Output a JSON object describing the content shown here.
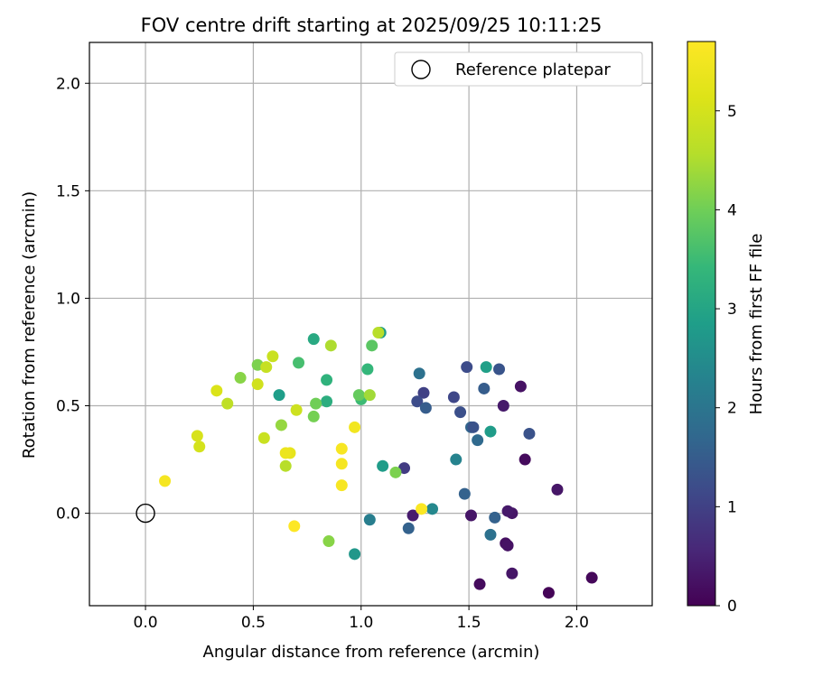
{
  "chart_data": {
    "type": "scatter",
    "title": "FOV centre drift starting at 2025/09/25 10:11:25",
    "xlabel": "Angular distance from reference (arcmin)",
    "ylabel": "Rotation from reference (arcmin)",
    "xlim": [
      -0.26,
      2.35
    ],
    "ylim": [
      -0.43,
      2.19
    ],
    "xticks": [
      0.0,
      0.5,
      1.0,
      1.5,
      2.0
    ],
    "xtick_labels": [
      "0.0",
      "0.5",
      "1.0",
      "1.5",
      "2.0"
    ],
    "yticks": [
      0.0,
      0.5,
      1.0,
      1.5,
      2.0
    ],
    "ytick_labels": [
      "0.0",
      "0.5",
      "1.0",
      "1.5",
      "2.0"
    ],
    "grid": true,
    "legend": {
      "position": "top-right",
      "entries": [
        {
          "label": "Reference platepar",
          "marker": "open-circle"
        }
      ]
    },
    "reference_point": {
      "x": 0.0,
      "y": 0.0
    },
    "colorbar": {
      "label": "Hours from first FF file",
      "min": 0,
      "max": 5.7,
      "ticks": [
        0,
        1,
        2,
        3,
        4,
        5
      ],
      "tick_labels": [
        "0",
        "1",
        "2",
        "3",
        "4",
        "5"
      ],
      "colormap": "viridis"
    },
    "points": [
      {
        "x": 1.87,
        "y": -0.37,
        "t": 0.05
      },
      {
        "x": 2.07,
        "y": -0.3,
        "t": 0.1
      },
      {
        "x": 1.55,
        "y": -0.33,
        "t": 0.15
      },
      {
        "x": 1.7,
        "y": -0.28,
        "t": 0.3
      },
      {
        "x": 1.67,
        "y": -0.14,
        "t": 0.2
      },
      {
        "x": 1.68,
        "y": -0.15,
        "t": 0.25
      },
      {
        "x": 1.7,
        "y": 0.0,
        "t": 0.3
      },
      {
        "x": 1.68,
        "y": 0.01,
        "t": 0.35
      },
      {
        "x": 1.51,
        "y": -0.01,
        "t": 0.3
      },
      {
        "x": 1.24,
        "y": -0.01,
        "t": 0.4
      },
      {
        "x": 1.91,
        "y": 0.11,
        "t": 0.3
      },
      {
        "x": 1.76,
        "y": 0.25,
        "t": 0.15
      },
      {
        "x": 1.74,
        "y": 0.59,
        "t": 0.25
      },
      {
        "x": 1.66,
        "y": 0.5,
        "t": 0.35
      },
      {
        "x": 1.2,
        "y": 0.21,
        "t": 0.9
      },
      {
        "x": 1.62,
        "y": -0.02,
        "t": 1.6
      },
      {
        "x": 1.6,
        "y": -0.1,
        "t": 1.9
      },
      {
        "x": 1.22,
        "y": -0.07,
        "t": 1.6
      },
      {
        "x": 1.48,
        "y": 0.09,
        "t": 1.6
      },
      {
        "x": 1.78,
        "y": 0.37,
        "t": 1.3
      },
      {
        "x": 1.49,
        "y": 0.68,
        "t": 1.2
      },
      {
        "x": 1.64,
        "y": 0.67,
        "t": 1.35
      },
      {
        "x": 1.57,
        "y": 0.58,
        "t": 1.5
      },
      {
        "x": 1.43,
        "y": 0.54,
        "t": 1.1
      },
      {
        "x": 1.29,
        "y": 0.56,
        "t": 1.0
      },
      {
        "x": 1.26,
        "y": 0.52,
        "t": 1.2
      },
      {
        "x": 1.3,
        "y": 0.49,
        "t": 1.5
      },
      {
        "x": 1.46,
        "y": 0.47,
        "t": 1.25
      },
      {
        "x": 1.51,
        "y": 0.4,
        "t": 1.65
      },
      {
        "x": 1.52,
        "y": 0.4,
        "t": 1.3
      },
      {
        "x": 1.54,
        "y": 0.34,
        "t": 1.75
      },
      {
        "x": 1.27,
        "y": 0.65,
        "t": 1.9
      },
      {
        "x": 1.44,
        "y": 0.25,
        "t": 2.3
      },
      {
        "x": 1.04,
        "y": -0.03,
        "t": 2.2
      },
      {
        "x": 1.33,
        "y": 0.02,
        "t": 2.4
      },
      {
        "x": 0.97,
        "y": -0.19,
        "t": 2.7
      },
      {
        "x": 1.6,
        "y": 0.38,
        "t": 2.8
      },
      {
        "x": 1.58,
        "y": 0.68,
        "t": 2.9
      },
      {
        "x": 1.1,
        "y": 0.22,
        "t": 2.8
      },
      {
        "x": 1.09,
        "y": 0.84,
        "t": 2.85
      },
      {
        "x": 0.62,
        "y": 0.55,
        "t": 2.85
      },
      {
        "x": 0.78,
        "y": 0.81,
        "t": 3.1
      },
      {
        "x": 0.84,
        "y": 0.52,
        "t": 3.2
      },
      {
        "x": 0.84,
        "y": 0.62,
        "t": 3.3
      },
      {
        "x": 1.03,
        "y": 0.67,
        "t": 3.4
      },
      {
        "x": 1.0,
        "y": 0.53,
        "t": 3.5
      },
      {
        "x": 0.71,
        "y": 0.7,
        "t": 3.6
      },
      {
        "x": 1.05,
        "y": 0.78,
        "t": 3.8
      },
      {
        "x": 0.99,
        "y": 0.55,
        "t": 3.9
      },
      {
        "x": 0.79,
        "y": 0.51,
        "t": 4.0
      },
      {
        "x": 0.78,
        "y": 0.45,
        "t": 4.05
      },
      {
        "x": 1.16,
        "y": 0.19,
        "t": 4.1
      },
      {
        "x": 0.85,
        "y": -0.13,
        "t": 4.2
      },
      {
        "x": 0.52,
        "y": 0.69,
        "t": 4.1
      },
      {
        "x": 0.44,
        "y": 0.63,
        "t": 4.2
      },
      {
        "x": 0.63,
        "y": 0.41,
        "t": 4.3
      },
      {
        "x": 1.04,
        "y": 0.55,
        "t": 4.4
      },
      {
        "x": 0.86,
        "y": 0.78,
        "t": 4.5
      },
      {
        "x": 1.08,
        "y": 0.84,
        "t": 4.6
      },
      {
        "x": 0.65,
        "y": 0.22,
        "t": 4.6
      },
      {
        "x": 0.38,
        "y": 0.51,
        "t": 4.7
      },
      {
        "x": 0.56,
        "y": 0.68,
        "t": 4.8
      },
      {
        "x": 0.59,
        "y": 0.73,
        "t": 4.85
      },
      {
        "x": 0.55,
        "y": 0.35,
        "t": 4.85
      },
      {
        "x": 0.7,
        "y": 0.48,
        "t": 4.9
      },
      {
        "x": 0.52,
        "y": 0.6,
        "t": 4.95
      },
      {
        "x": 0.25,
        "y": 0.31,
        "t": 5.0
      },
      {
        "x": 0.24,
        "y": 0.36,
        "t": 5.05
      },
      {
        "x": 0.33,
        "y": 0.57,
        "t": 5.1
      },
      {
        "x": 0.67,
        "y": 0.28,
        "t": 5.3
      },
      {
        "x": 0.65,
        "y": 0.28,
        "t": 5.4
      },
      {
        "x": 0.97,
        "y": 0.4,
        "t": 5.5
      },
      {
        "x": 0.91,
        "y": 0.3,
        "t": 5.6
      },
      {
        "x": 0.91,
        "y": 0.23,
        "t": 5.55
      },
      {
        "x": 0.91,
        "y": 0.13,
        "t": 5.6
      },
      {
        "x": 0.09,
        "y": 0.15,
        "t": 5.55
      },
      {
        "x": 1.28,
        "y": 0.02,
        "t": 5.65
      },
      {
        "x": 0.69,
        "y": -0.06,
        "t": 5.7
      }
    ]
  }
}
